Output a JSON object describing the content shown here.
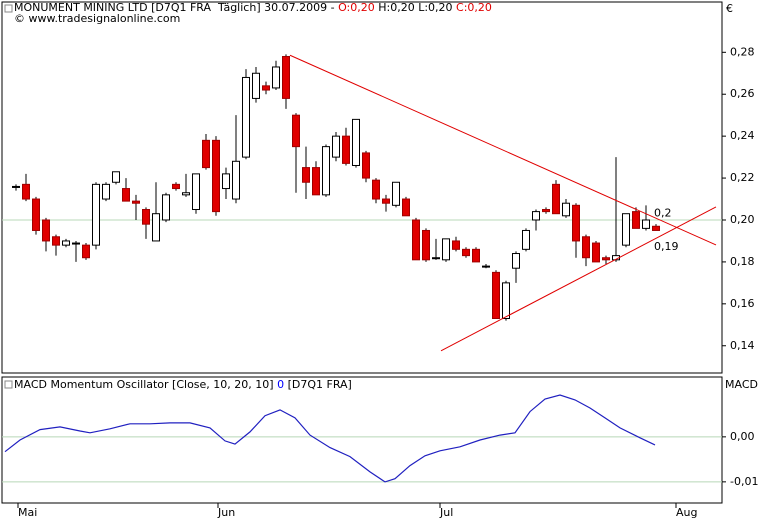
{
  "chart_data": [
    {
      "type": "candlestick",
      "title_parts": [
        {
          "text": "MONUMENT MINING LTD [D7Q1 FRA  Täglich] 30.07.2009 - ",
          "color": "#000000"
        },
        {
          "text": "O:0,20",
          "color": "#e00000"
        },
        {
          "text": " H:0,20 L:0,20 ",
          "color": "#000000"
        },
        {
          "text": "C:0,20",
          "color": "#e00000"
        }
      ],
      "subtitle": "© www.tradesignalonline.com",
      "unit": "€",
      "categories": [
        null,
        null,
        null,
        null,
        null,
        null,
        null,
        null,
        null,
        null,
        null,
        null,
        null,
        null,
        null,
        null,
        null,
        null,
        null,
        null,
        null,
        null,
        null,
        null,
        null,
        null,
        null,
        null,
        null,
        null,
        null,
        null,
        null,
        null,
        null,
        null,
        null,
        null,
        null,
        null,
        null,
        null,
        null,
        null,
        null,
        null,
        null,
        null,
        null,
        null,
        null,
        null,
        null,
        null,
        null,
        null,
        null,
        null,
        null,
        null,
        null,
        null,
        null,
        null,
        null
      ],
      "open": [
        0.216,
        0.217,
        0.21,
        0.2,
        0.192,
        0.188,
        0.189,
        0.188,
        0.188,
        0.21,
        0.218,
        0.215,
        0.209,
        0.205,
        0.19,
        0.2,
        0.217,
        0.212,
        0.205,
        0.238,
        0.238,
        0.215,
        0.21,
        0.23,
        0.258,
        0.264,
        0.263,
        0.278,
        0.25,
        0.225,
        0.225,
        0.212,
        0.23,
        0.24,
        0.226,
        0.232,
        0.219,
        0.21,
        0.207,
        0.21,
        0.2,
        0.195,
        0.182,
        0.181,
        0.19,
        0.186,
        0.186,
        0.178,
        0.175,
        0.153,
        0.177,
        0.186,
        0.2,
        0.205,
        0.217,
        0.202,
        0.207,
        0.192,
        0.189,
        0.182,
        0.181,
        0.188,
        0.204,
        0.196,
        0.197
      ],
      "high": [
        0.217,
        0.222,
        0.211,
        0.201,
        0.193,
        0.191,
        0.19,
        0.189,
        0.218,
        0.218,
        0.223,
        0.22,
        0.212,
        0.206,
        0.218,
        0.213,
        0.218,
        0.222,
        0.222,
        0.241,
        0.24,
        0.225,
        0.25,
        0.272,
        0.273,
        0.266,
        0.276,
        0.279,
        0.251,
        0.235,
        0.228,
        0.236,
        0.242,
        0.244,
        0.248,
        0.233,
        0.22,
        0.212,
        0.218,
        0.211,
        0.201,
        0.196,
        0.191,
        0.191,
        0.192,
        0.187,
        0.187,
        0.179,
        0.176,
        0.171,
        0.185,
        0.196,
        0.205,
        0.206,
        0.219,
        0.21,
        0.208,
        0.193,
        0.19,
        0.183,
        0.23,
        0.203,
        0.206,
        0.207,
        0.198
      ],
      "low": [
        0.214,
        0.209,
        0.193,
        0.185,
        0.183,
        0.187,
        0.18,
        0.181,
        0.186,
        0.209,
        0.217,
        0.209,
        0.2,
        0.191,
        0.19,
        0.199,
        0.214,
        0.211,
        0.203,
        0.224,
        0.202,
        0.21,
        0.208,
        0.229,
        0.256,
        0.26,
        0.262,
        0.253,
        0.213,
        0.21,
        0.212,
        0.211,
        0.228,
        0.226,
        0.225,
        0.218,
        0.208,
        0.204,
        0.206,
        0.202,
        0.181,
        0.18,
        0.181,
        0.18,
        0.185,
        0.182,
        0.18,
        0.177,
        0.153,
        0.152,
        0.17,
        0.185,
        0.195,
        0.203,
        0.203,
        0.201,
        0.182,
        0.178,
        0.18,
        0.179,
        0.18,
        0.187,
        0.196,
        0.195,
        0.195
      ],
      "close": [
        0.216,
        0.21,
        0.195,
        0.19,
        0.188,
        0.19,
        0.189,
        0.182,
        0.217,
        0.217,
        0.223,
        0.209,
        0.208,
        0.198,
        0.203,
        0.212,
        0.215,
        0.213,
        0.222,
        0.225,
        0.204,
        0.222,
        0.228,
        0.268,
        0.27,
        0.262,
        0.273,
        0.258,
        0.235,
        0.218,
        0.212,
        0.235,
        0.24,
        0.227,
        0.248,
        0.22,
        0.21,
        0.208,
        0.218,
        0.202,
        0.181,
        0.181,
        0.182,
        0.191,
        0.186,
        0.183,
        0.18,
        0.178,
        0.153,
        0.17,
        0.184,
        0.195,
        0.204,
        0.204,
        0.203,
        0.208,
        0.19,
        0.182,
        0.18,
        0.181,
        0.183,
        0.203,
        0.196,
        0.2,
        0.195
      ],
      "up_color": "#ffffff",
      "down_color": "#e00000",
      "xlim": [
        -1.4,
        70.6
      ],
      "xticks": [
        {
          "value": 0.2,
          "label": "Mai"
        },
        {
          "value": 20.2,
          "label": "Jun"
        },
        {
          "value": 42.4,
          "label": "Jul"
        },
        {
          "value": 66,
          "label": "Aug"
        }
      ],
      "ylim": [
        0.127,
        0.304
      ],
      "yticks": [
        {
          "value": 0.14,
          "label": "0,14"
        },
        {
          "value": 0.16,
          "label": "0,16"
        },
        {
          "value": 0.18,
          "label": "0,18"
        },
        {
          "value": 0.2,
          "label": "0,20"
        },
        {
          "value": 0.22,
          "label": "0,22"
        },
        {
          "value": 0.24,
          "label": "0,24"
        },
        {
          "value": 0.26,
          "label": "0,26"
        },
        {
          "value": 0.28,
          "label": "0,28"
        }
      ],
      "reference_lines": [
        0.2
      ],
      "trendlines": [
        {
          "x": [
            27.4,
            70
          ],
          "y": [
            0.2786,
            0.1881
          ],
          "color": "#e00000"
        },
        {
          "x": [
            42.5,
            70
          ],
          "y": [
            0.1376,
            0.2062
          ],
          "color": "#e00000"
        }
      ],
      "annotations": [
        {
          "text": "0,2",
          "value": 0.2,
          "x": 64,
          "y": 0.203
        },
        {
          "text": "0,19",
          "value": 0.19,
          "x": 64,
          "y": 0.187
        }
      ]
    },
    {
      "type": "line",
      "title_parts": [
        {
          "text": "MACD Momentum Oscillator [Close, 10, 20, 10] ",
          "color": "#000000"
        },
        {
          "text": "0",
          "color": "#0000ff"
        },
        {
          "text": " [D7Q1 FRA]",
          "color": "#000000"
        }
      ],
      "axis_label": "MACD",
      "x": [
        -1.1,
        0.4,
        2.4,
        4.4,
        6.4,
        7.4,
        9.4,
        11.4,
        13.4,
        15.4,
        17.4,
        19.4,
        20.9,
        21.9,
        23.4,
        24.9,
        26.4,
        27.9,
        29.4,
        31.4,
        33.4,
        35.4,
        36.9,
        37.9,
        39.4,
        40.9,
        42.4,
        44.4,
        46.4,
        48.4,
        49.9,
        51.4,
        52.9,
        54.4,
        55.9,
        57.4,
        58.9,
        60.4,
        62.4,
        63.9
      ],
      "series": [
        {
          "name": "MACD",
          "color": "#2020c0",
          "values": [
            -0.0033,
            -0.0007,
            0.0016,
            0.0022,
            0.0013,
            0.0009,
            0.0018,
            0.0029,
            0.0029,
            0.0031,
            0.0031,
            0.002,
            -0.0009,
            -0.0016,
            0.0011,
            0.0047,
            0.006,
            0.0042,
            0.0004,
            -0.0024,
            -0.0044,
            -0.0078,
            -0.01,
            -0.0093,
            -0.0064,
            -0.0042,
            -0.0031,
            -0.0022,
            -0.0007,
            0.0004,
            0.0009,
            0.0056,
            0.0084,
            0.0093,
            0.0082,
            0.0064,
            0.0042,
            0.002,
            -0.0002,
            -0.0018
          ]
        }
      ],
      "xlim": [
        -1.4,
        70.6
      ],
      "ylim": [
        -0.0147,
        0.0133
      ],
      "yticks": [
        {
          "value": -0.01,
          "label": "-0,01"
        },
        {
          "value": 0,
          "label": "0,00"
        }
      ],
      "reference_lines": [
        0,
        -0.01
      ]
    }
  ]
}
